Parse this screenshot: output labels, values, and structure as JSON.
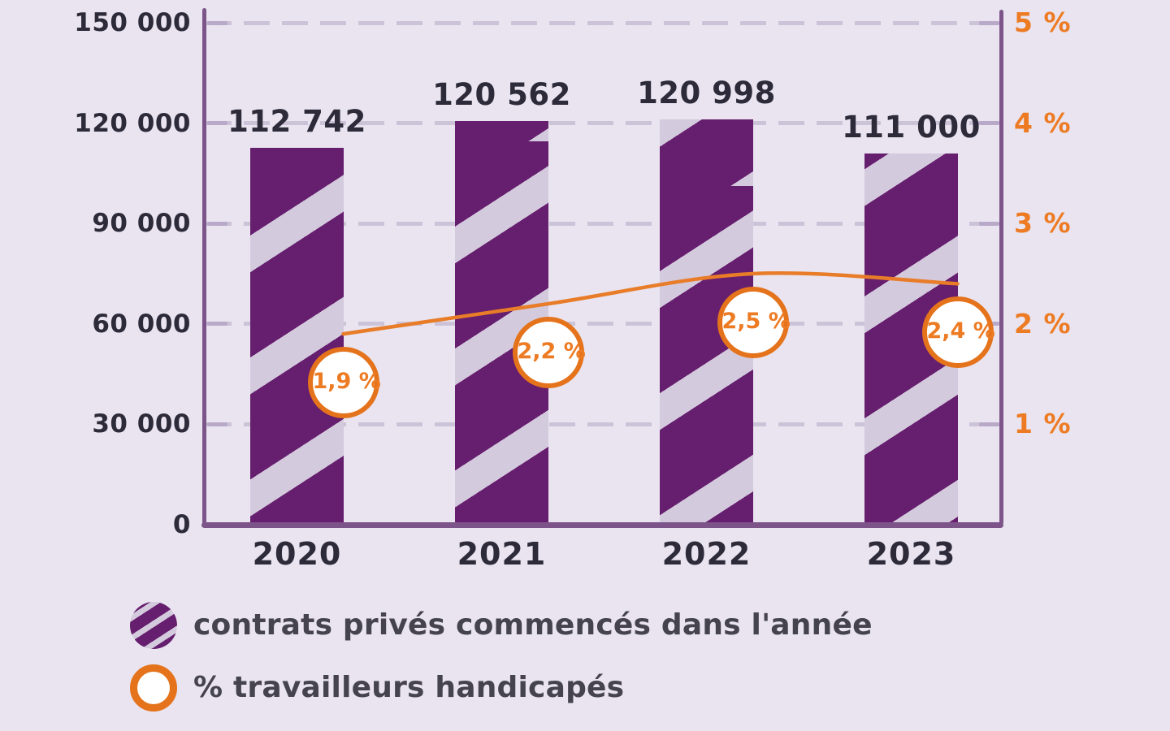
{
  "chart_data": {
    "type": "bar",
    "categories": [
      "2020",
      "2021",
      "2022",
      "2023"
    ],
    "series": [
      {
        "name": "contrats privés commencés dans l'année",
        "type": "bar",
        "axis": "left",
        "values": [
          112742,
          120562,
          120998,
          111000
        ],
        "value_labels": [
          "112 742",
          "120 562",
          "120 998",
          "111 000"
        ]
      },
      {
        "name": "% travailleurs handicapés",
        "type": "line",
        "axis": "right",
        "values": [
          1.9,
          2.2,
          2.5,
          2.4
        ],
        "value_labels": [
          "1,9 %",
          "2,2 %",
          "2,5 %",
          "2,4 %"
        ]
      }
    ],
    "left_axis": {
      "range": [
        0,
        150000
      ],
      "ticks": [
        0,
        30000,
        60000,
        90000,
        120000,
        150000
      ],
      "tick_labels": [
        "0",
        "30 000",
        "60 000",
        "90 000",
        "120 000",
        "150 000"
      ]
    },
    "right_axis": {
      "range": [
        0,
        5
      ],
      "ticks": [
        1,
        2,
        3,
        4,
        5
      ],
      "tick_labels": [
        "1 %",
        "2 %",
        "3 %",
        "4 %",
        "5 %"
      ]
    },
    "grid": "horizontal-dashed",
    "legend_position": "bottom-left"
  },
  "legend": {
    "items": [
      {
        "label": "contrats privés commencés dans l'année",
        "swatch": "purple-striped-circle"
      },
      {
        "label": "% travailleurs handicapés",
        "swatch": "orange-ring-circle"
      }
    ]
  },
  "colors": {
    "background": "#e9e4ef",
    "bar_purple": "#661e6e",
    "bar_stripe": "#d4cadd",
    "axis_purple": "#7c548a",
    "grid_dash": "#cdc3d8",
    "axis_tick": "#b9a9c9",
    "text_dark": "#2d2a3a",
    "orange": "#ed7b23",
    "line_orange": "#e87c28",
    "badge_border": "#e4731c",
    "badge_text": "#ed7b23",
    "badge_bg": "#ffffff",
    "legend_text": "#45434e"
  }
}
